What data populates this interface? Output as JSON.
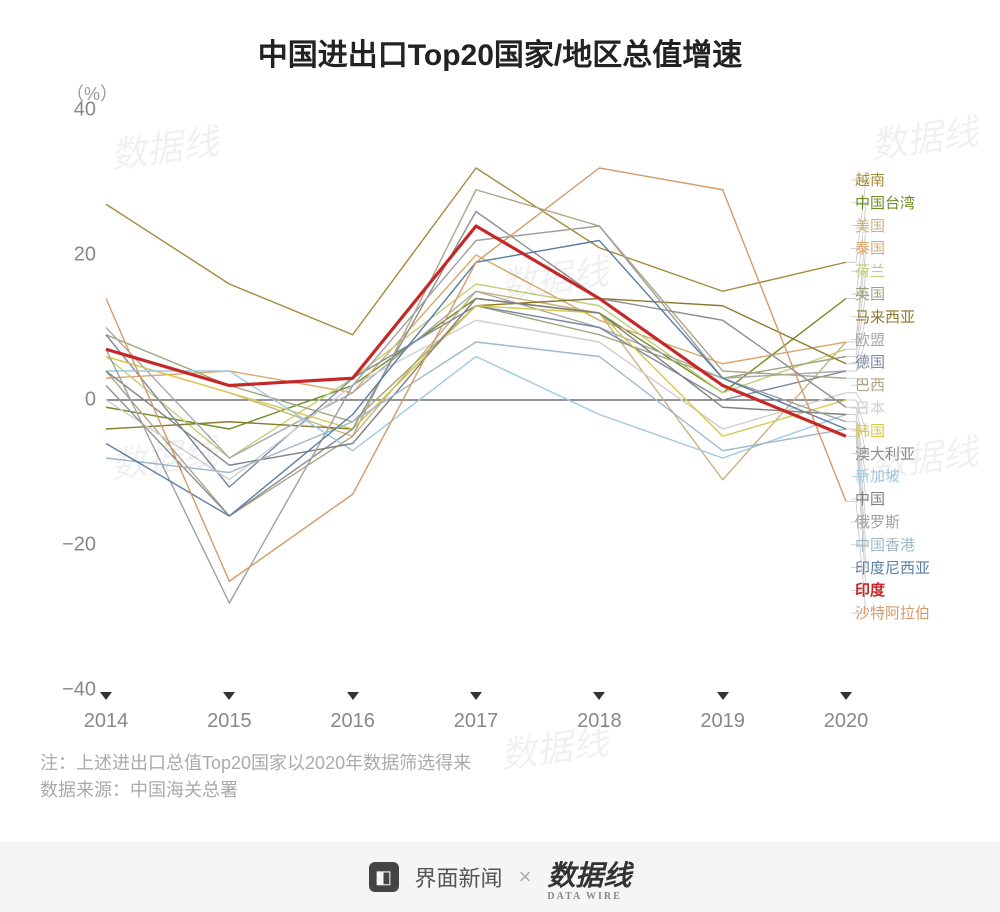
{
  "title": "中国进出口Top20国家/地区总值增速",
  "y_unit": "（%）",
  "footnote_line1": "注：上述进出口总值Top20国家以2020年数据筛选得来",
  "footnote_line2": "数据来源：中国海关总署",
  "footer": {
    "brand1": "界面新闻",
    "sep": "×",
    "brand2": "数据线",
    "brand2_sub": "DATA WIRE"
  },
  "chart": {
    "type": "line",
    "background_color": "#ffffff",
    "grid": false,
    "xlim": [
      2014,
      2020
    ],
    "ylim": [
      -40,
      40
    ],
    "ytick_step": 20,
    "xticks": [
      2014,
      2015,
      2016,
      2017,
      2018,
      2019,
      2020
    ],
    "yticks": [
      -40,
      -20,
      0,
      20,
      40
    ],
    "zero_line_color": "#555555",
    "zero_line_width": 1.2,
    "axis_fontsize": 20,
    "axis_color": "#888888",
    "line_width_default": 1.4,
    "highlight_series": "印度",
    "highlight_line_width": 3.2,
    "series": [
      {
        "name": "越南",
        "color": "#a68a3a",
        "values": [
          27,
          16,
          9,
          32,
          21,
          15,
          19
        ]
      },
      {
        "name": "中国台湾",
        "color": "#6b8e23",
        "values": [
          -1,
          -4,
          2,
          14,
          12,
          1,
          14
        ]
      },
      {
        "name": "美国",
        "color": "#c9b37e",
        "values": [
          6,
          1,
          -5,
          15,
          12,
          -11,
          8
        ]
      },
      {
        "name": "泰国",
        "color": "#d9a86c",
        "values": [
          3,
          4,
          1,
          20,
          11,
          5,
          8
        ]
      },
      {
        "name": "荷兰",
        "color": "#c0cf7a",
        "values": [
          6,
          -8,
          3,
          16,
          13,
          1,
          7
        ]
      },
      {
        "name": "英国",
        "color": "#9aa77a",
        "values": [
          9,
          2,
          -3,
          13,
          9,
          3,
          6
        ]
      },
      {
        "name": "马来西亚",
        "color": "#8a7a2e",
        "values": [
          -4,
          -3,
          -4,
          13,
          14,
          13,
          5
        ]
      },
      {
        "name": "欧盟",
        "color": "#a9a9a9",
        "values": [
          10,
          -8,
          1,
          15,
          10,
          3,
          4
        ]
      },
      {
        "name": "德国",
        "color": "#7a8aa0",
        "values": [
          9,
          -12,
          3,
          13,
          10,
          0,
          4
        ]
      },
      {
        "name": "巴西",
        "color": "#b0a58a",
        "values": [
          4,
          -16,
          -5,
          29,
          24,
          4,
          3
        ]
      },
      {
        "name": "日本",
        "color": "#cfcfcf",
        "values": [
          0,
          -11,
          2,
          11,
          8,
          -4,
          1
        ]
      },
      {
        "name": "韩国",
        "color": "#d6c94a",
        "values": [
          6,
          1,
          -4,
          13,
          12,
          -5,
          0
        ]
      },
      {
        "name": "澳大利亚",
        "color": "#8f8f8f",
        "values": [
          2,
          -16,
          -4,
          26,
          14,
          11,
          -1
        ]
      },
      {
        "name": "新加坡",
        "color": "#9ec9e2",
        "values": [
          4,
          4,
          -7,
          6,
          -2,
          -8,
          -2
        ]
      },
      {
        "name": "中国",
        "color": "#808080",
        "values": [
          4,
          -9,
          -6,
          14,
          12,
          -1,
          -2
        ]
      },
      {
        "name": "俄罗斯",
        "color": "#a0a0a0",
        "values": [
          7,
          -28,
          2,
          22,
          24,
          3,
          -3
        ]
      },
      {
        "name": "中国香港",
        "color": "#9fb8cc",
        "values": [
          -8,
          -10,
          -3,
          8,
          6,
          -7,
          -4
        ]
      },
      {
        "name": "印度尼西亚",
        "color": "#5a7fa3",
        "values": [
          -6,
          -16,
          -2,
          19,
          22,
          3,
          -4
        ]
      },
      {
        "name": "印度",
        "color": "#c62828",
        "values": [
          7,
          2,
          3,
          24,
          14,
          2,
          -5
        ]
      },
      {
        "name": "沙特阿拉伯",
        "color": "#d49a6a",
        "values": [
          14,
          -25,
          -13,
          19,
          32,
          29,
          -14
        ]
      }
    ]
  },
  "watermark_text": "数据线"
}
